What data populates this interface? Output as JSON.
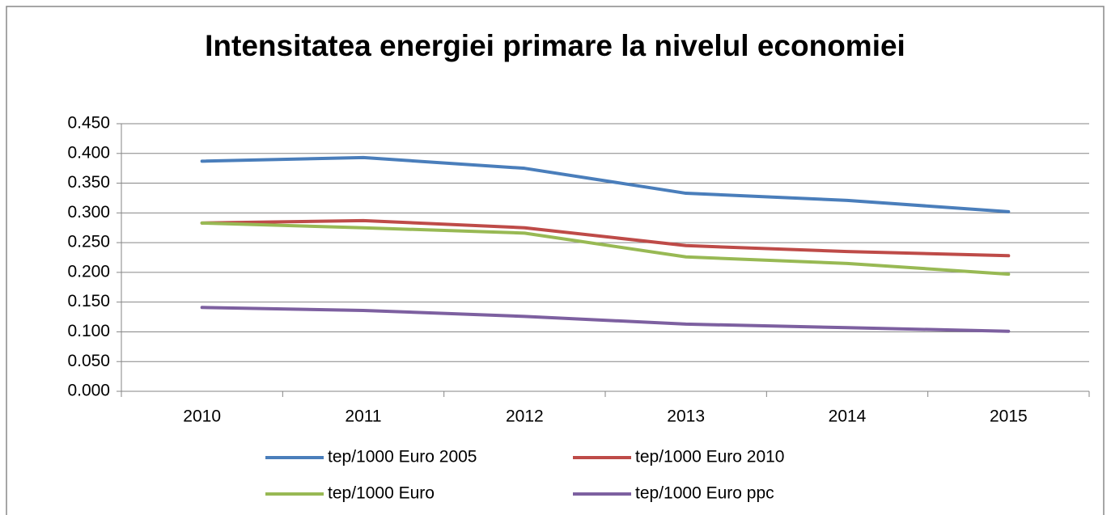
{
  "chart_data": {
    "type": "line",
    "title": "Intensitatea energiei primare la nivelul economiei",
    "categories": [
      "2010",
      "2011",
      "2012",
      "2013",
      "2014",
      "2015"
    ],
    "series": [
      {
        "name": "tep/1000 Euro 2005",
        "color": "#4a7ebb",
        "values": [
          0.387,
          0.393,
          0.375,
          0.333,
          0.321,
          0.302
        ]
      },
      {
        "name": "tep/1000 Euro 2010",
        "color": "#be4b48",
        "values": [
          0.283,
          0.287,
          0.275,
          0.245,
          0.235,
          0.228
        ]
      },
      {
        "name": "tep/1000 Euro",
        "color": "#98b954",
        "values": [
          0.283,
          0.275,
          0.266,
          0.226,
          0.215,
          0.197
        ]
      },
      {
        "name": "tep/1000 Euro ppc",
        "color": "#7d60a0",
        "values": [
          0.141,
          0.136,
          0.126,
          0.113,
          0.107,
          0.101
        ]
      }
    ],
    "ylim": [
      0,
      0.45
    ],
    "yticks": [
      {
        "value": 0,
        "label": "0.000"
      },
      {
        "value": 0.05,
        "label": "0.050"
      },
      {
        "value": 0.1,
        "label": "0.100"
      },
      {
        "value": 0.15,
        "label": "0.150"
      },
      {
        "value": 0.2,
        "label": "0.200"
      },
      {
        "value": 0.25,
        "label": "0.250"
      },
      {
        "value": 0.3,
        "label": "0.300"
      },
      {
        "value": 0.35,
        "label": "0.350"
      },
      {
        "value": 0.4,
        "label": "0.400"
      },
      {
        "value": 0.45,
        "label": "0.450"
      }
    ],
    "grid": true
  }
}
